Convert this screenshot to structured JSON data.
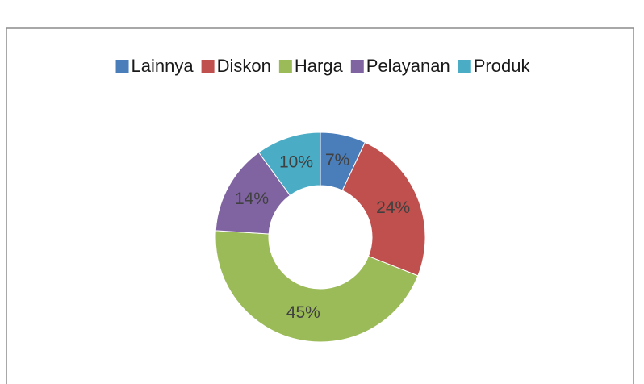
{
  "chart_data": {
    "type": "donut",
    "categories": [
      "Lainnya",
      "Diskon",
      "Harga",
      "Pelayanan",
      "Produk"
    ],
    "values": [
      7,
      24,
      45,
      14,
      10
    ],
    "value_labels": [
      "7%",
      "24%",
      "45%",
      "14%",
      "10%"
    ],
    "colors": [
      "#4a7ebb",
      "#c0504d",
      "#9bbb59",
      "#8064a2",
      "#4bacc6"
    ],
    "legend": "top"
  }
}
